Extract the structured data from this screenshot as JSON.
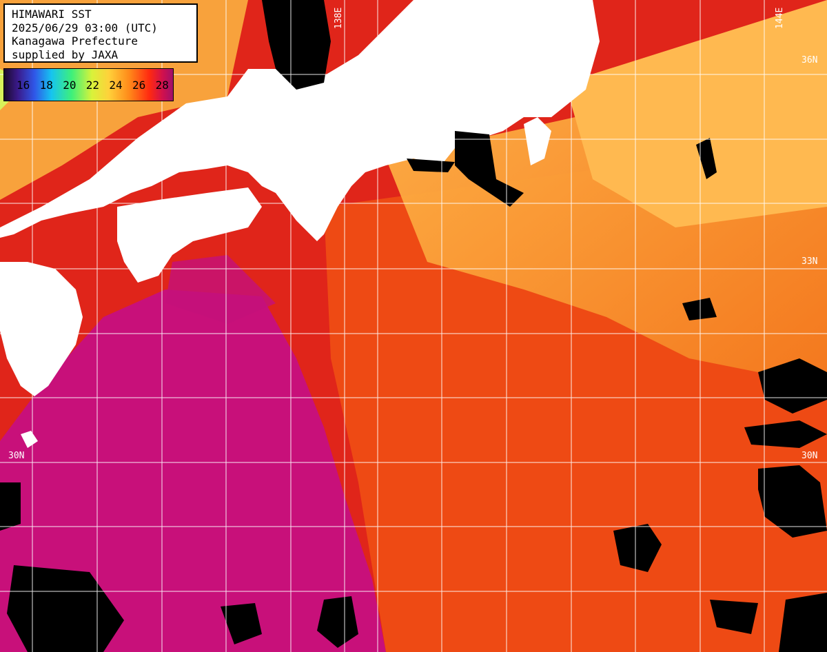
{
  "header": {
    "line1": "HIMAWARI SST",
    "line2": "2025/06/29 03:00 (UTC)",
    "line3": "Kanagawa Prefecture",
    "line4": "supplied by JAXA"
  },
  "colorbar": {
    "labels": [
      "16",
      "18",
      "20",
      "22",
      "24",
      "26",
      "28"
    ]
  },
  "grid_labels": {
    "lat_36": "36N",
    "lat_33": "33N",
    "lat_30_left": "30N",
    "lat_30_right": "30N",
    "lon_138": "138E",
    "lon_144": "144E"
  },
  "colors": {
    "ocean_warm": "#d8101c",
    "ocean_hot": "#c8107a",
    "ocean_mid": "#f04a10",
    "ocean_cool": "#f8a03a",
    "land": "#ffffff",
    "cloud": "#000000",
    "grid": "#ffffff"
  }
}
